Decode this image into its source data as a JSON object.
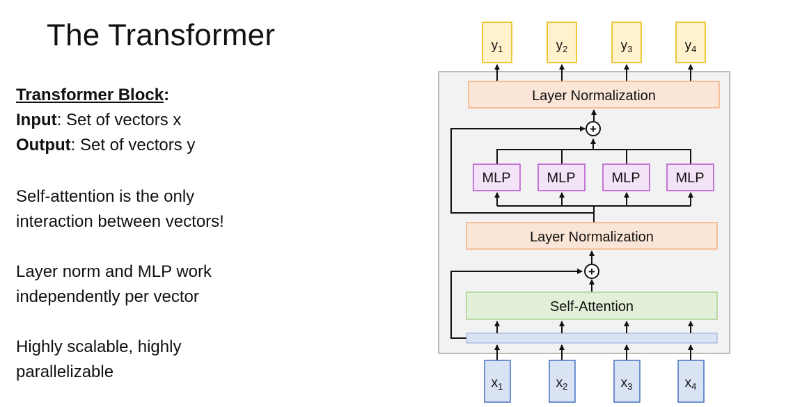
{
  "slide": {
    "title": "The Transformer",
    "block": {
      "heading": "Transformer Block",
      "heading_suffix": ":",
      "input_label": "Input",
      "input_text": ": Set of vectors x",
      "output_label": "Output",
      "output_text": ": Set of vectors y"
    },
    "notes": [
      [
        "Self-attention is the only",
        "interaction between vectors!"
      ],
      [
        "Layer norm and MLP work",
        "independently per vector"
      ],
      [
        "Highly scalable, highly",
        "parallelizable"
      ]
    ]
  },
  "diagram": {
    "outputs": [
      "y",
      "y",
      "y",
      "y"
    ],
    "output_subs": [
      "1",
      "2",
      "3",
      "4"
    ],
    "inputs": [
      "x",
      "x",
      "x",
      "x"
    ],
    "input_subs": [
      "1",
      "2",
      "3",
      "4"
    ],
    "layer_norm_top": "Layer Normalization",
    "layer_norm_bottom": "Layer Normalization",
    "self_attention": "Self-Attention",
    "mlp_labels": [
      "MLP",
      "MLP",
      "MLP",
      "MLP"
    ],
    "plus_symbol": "+",
    "colors": {
      "output_fill": "#fff2cc",
      "output_stroke": "#e6b800",
      "input_fill": "#dae3f3",
      "input_stroke": "#4472c4",
      "layernorm_fill": "#fbe5d6",
      "layernorm_stroke": "#f4b183",
      "attention_fill": "#e2f0d9",
      "attention_stroke": "#a9d18e",
      "mlp_fill": "#f3e3f7",
      "mlp_stroke": "#b452cd",
      "container_fill": "#f2f2f2",
      "container_stroke": "#a6a6a6"
    }
  }
}
